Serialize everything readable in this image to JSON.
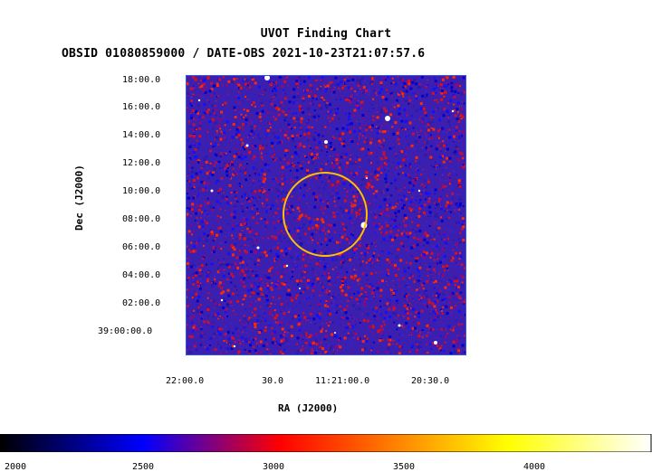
{
  "title": "UVOT Finding Chart",
  "subtitle": "OBSID 01080859000 / DATE-OBS 2021-10-23T21:07:57.6",
  "axes": {
    "xlabel": "RA (J2000)",
    "ylabel": "Dec (J2000)",
    "x_ticks": [
      "22:00.0",
      "30.0",
      "11:21:00.0",
      "20:30.0"
    ],
    "y_ticks": [
      "18:00.0",
      "16:00.0",
      "14:00.0",
      "12:00.0",
      "10:00.0",
      "08:00.0",
      "06:00.0",
      "04:00.0",
      "02:00.0",
      "39:00:00.0"
    ]
  },
  "image": {
    "colormap": [
      "#000000",
      "#0000ff",
      "#ff0000",
      "#ffff00",
      "#ffffff"
    ],
    "background_dominant": "#3a1fb0",
    "region_circle_color": "#ffc000",
    "border_color": "#3050ff"
  },
  "colorbar": {
    "ticks": [
      "2000",
      "2500",
      "3000",
      "3500",
      "4000"
    ],
    "min": 2000,
    "max": 4450
  }
}
